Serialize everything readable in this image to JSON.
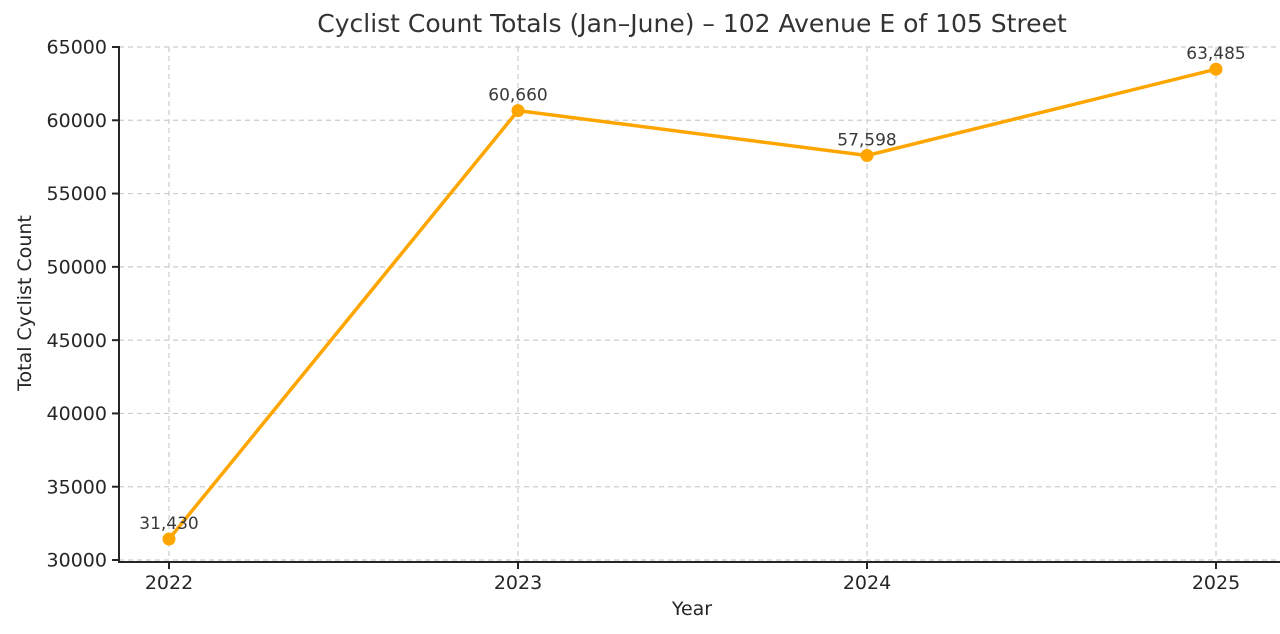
{
  "chart_data": {
    "type": "line",
    "title": "Cyclist Count Totals (Jan–June) – 102 Avenue E of 105 Street",
    "xlabel": "Year",
    "ylabel": "Total Cyclist Count",
    "x": [
      2022,
      2023,
      2024,
      2025
    ],
    "series": [
      {
        "name": "Total Cyclist Count",
        "values": [
          31430,
          60660,
          57598,
          63485
        ],
        "point_labels": [
          "31,430",
          "60,660",
          "57,598",
          "63,485"
        ]
      }
    ],
    "ylim": [
      30000,
      65000
    ],
    "yticks": [
      30000,
      35000,
      40000,
      45000,
      50000,
      55000,
      60000,
      65000
    ],
    "grid": true,
    "grid_style": "dashed",
    "legend": "none",
    "colors": {
      "line": "#FFA500",
      "marker": "#FFA500",
      "grid": "#cccccc",
      "spine": "#262626",
      "tick_label": "#262626",
      "annotation": "#3a3a3a",
      "title": "#333333",
      "background": "#ffffff"
    }
  }
}
